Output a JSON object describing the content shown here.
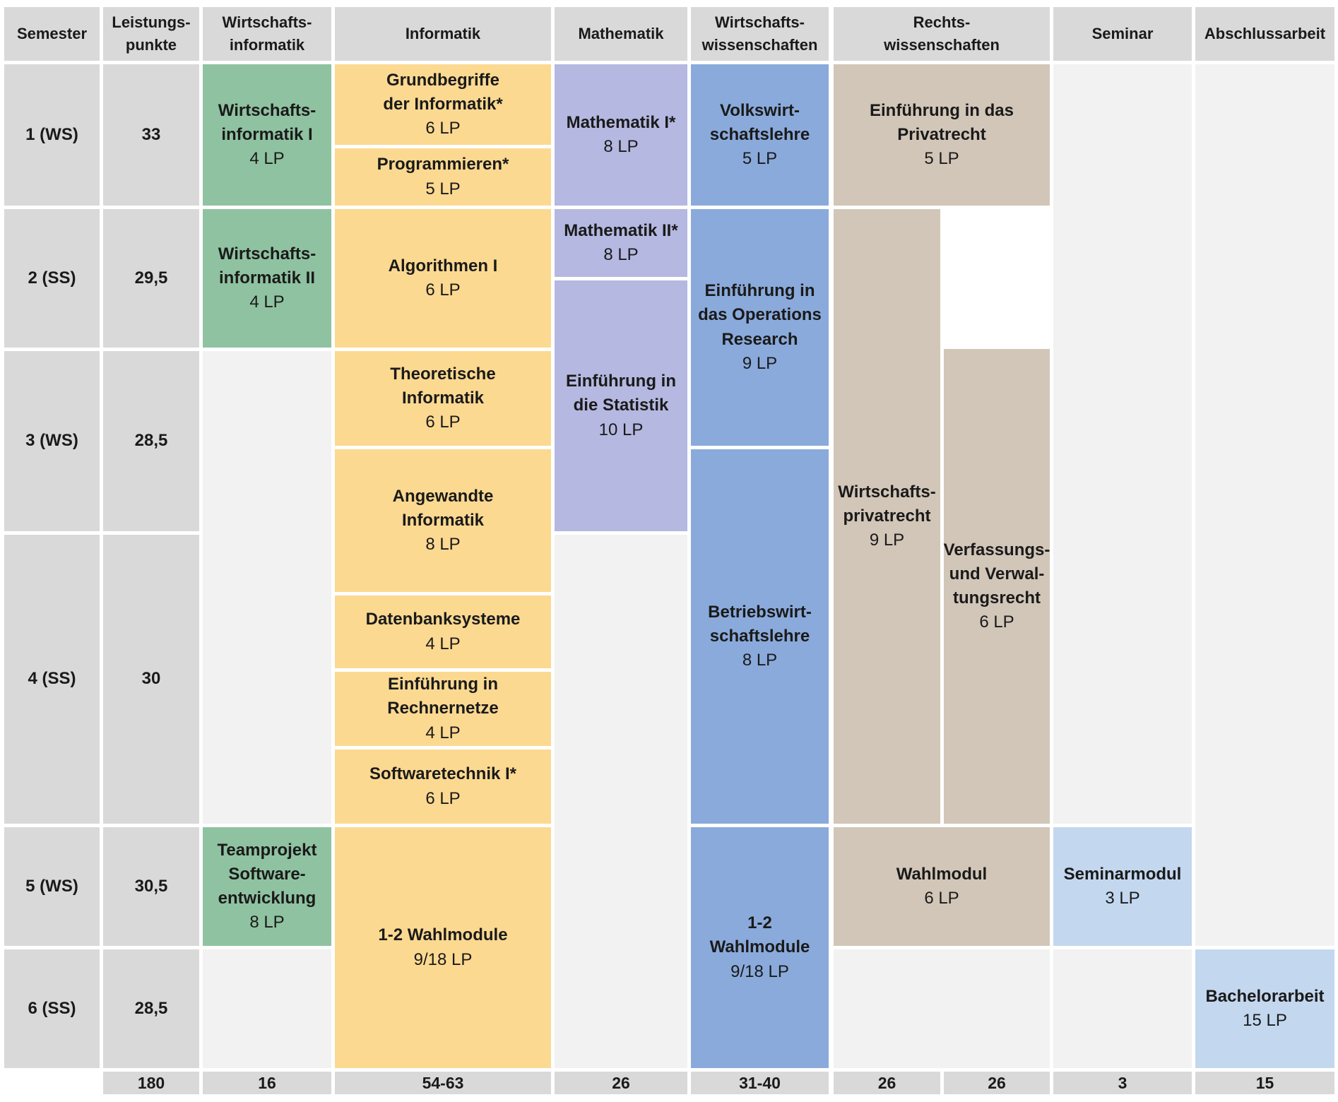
{
  "headers": {
    "semester": "Semester",
    "credits": "Leistungs-\npunkte",
    "wirtschaftsinformatik": "Wirtschafts-\ninformatik",
    "informatik": "Informatik",
    "mathematik": "Mathematik",
    "wirtschaftswissenschaften": "Wirtschafts-\nwissenschaften",
    "rechtswissenschaften": "Rechts-\nwissenschaften",
    "seminar": "Seminar",
    "abschlussarbeit": "Abschlussarbeit"
  },
  "semesters": [
    {
      "label": "1 (WS)",
      "credits": "33"
    },
    {
      "label": "2 (SS)",
      "credits": "29,5"
    },
    {
      "label": "3 (WS)",
      "credits": "28,5"
    },
    {
      "label": "4 (SS)",
      "credits": "30"
    },
    {
      "label": "5 (WS)",
      "credits": "30,5"
    },
    {
      "label": "6 (SS)",
      "credits": "28,5"
    }
  ],
  "modules": {
    "wi1": {
      "name": "Wirtschafts-\ninformatik I",
      "points": "4 LP"
    },
    "wi2": {
      "name": "Wirtschafts-\ninformatik II",
      "points": "4 LP"
    },
    "teamprojekt": {
      "name": "Teamprojekt\nSoftware-\nentwicklung",
      "points": "8 LP"
    },
    "grundbegriffe": {
      "name": "Grundbegriffe\nder Informatik*",
      "points": "6 LP"
    },
    "programmieren": {
      "name": "Programmieren*",
      "points": "5 LP"
    },
    "algorithmen": {
      "name": "Algorithmen I",
      "points": "6 LP"
    },
    "theoretische": {
      "name": "Theoretische\nInformatik",
      "points": "6 LP"
    },
    "angewandte": {
      "name": "Angewandte\nInformatik",
      "points": "8 LP"
    },
    "datenbank": {
      "name": "Datenbanksysteme",
      "points": "4 LP"
    },
    "rechnernetze": {
      "name": "Einführung in Rechnernetze",
      "points": "4 LP"
    },
    "softwaretechnik": {
      "name": "Softwaretechnik I*",
      "points": "6 LP"
    },
    "inf_wahl": {
      "name": "1-2 Wahlmodule",
      "points": "9/18 LP"
    },
    "mathe1": {
      "name": "Mathematik I*",
      "points": "8 LP"
    },
    "mathe2": {
      "name": "Mathematik II*",
      "points": "8 LP"
    },
    "statistik": {
      "name": "Einführung in\ndie Statistik",
      "points": "10 LP"
    },
    "vwl": {
      "name": "Volkswirt-\nschaftslehre",
      "points": "5 LP"
    },
    "or": {
      "name": "Einführung in\ndas Operations\nResearch",
      "points": "9 LP"
    },
    "bwl": {
      "name": "Betriebswirt-\nschaftslehre",
      "points": "8 LP"
    },
    "ww_wahl": {
      "name": "1-2 Wahlmodule",
      "points": "9/18 LP"
    },
    "privatrecht": {
      "name": "Einführung in das\nPrivatrecht",
      "points": "5 LP"
    },
    "wprivatrecht": {
      "name": "Wirtschafts-\nprivatrecht",
      "points": "9 LP"
    },
    "verfassung": {
      "name": "Verfassungs-\nund Verwal-\ntungsrecht",
      "points": "6 LP"
    },
    "recht_wahl": {
      "name": "Wahlmodul",
      "points": "6 LP"
    },
    "seminarmodul": {
      "name": "Seminarmodul",
      "points": "3 LP"
    },
    "bachelorarbeit": {
      "name": "Bachelorarbeit",
      "points": "15 LP"
    }
  },
  "totals": {
    "credits": "180",
    "wirtschaftsinformatik": "16",
    "informatik": "54-63",
    "mathematik": "26",
    "wirtschaftswissenschaften": "31-40",
    "recht_a": "26",
    "recht_b": "26",
    "seminar": "3",
    "abschlussarbeit": "15"
  },
  "colors": {
    "header_gray": "#d9d9d9",
    "empty_gray": "#f2f2f2",
    "wirtschaftsinformatik_green": "#8fc2a1",
    "informatik_yellow": "#fcd991",
    "mathematik_purple": "#b5b8e0",
    "wirtschaftswissenschaften_blue": "#8aaadb",
    "recht_tan": "#d2c6b8",
    "seminar_light_blue": "#c3d7ef"
  }
}
